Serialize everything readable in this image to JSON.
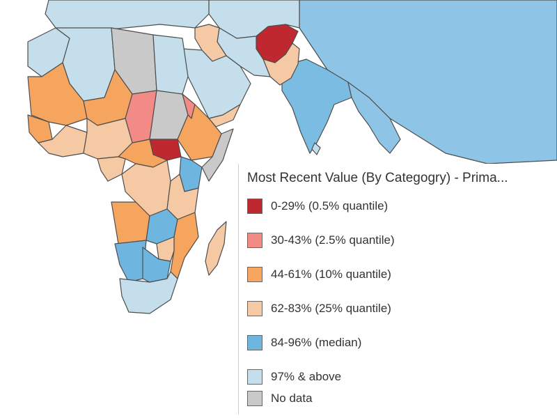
{
  "legend": {
    "title": "Most Recent Value (By Categogry) - Prima...",
    "items": [
      {
        "label": "0-29% (0.5% quantile)",
        "color": "#c0282f"
      },
      {
        "label": " 30-43% (2.5% quantile)",
        "color": "#f28b86"
      },
      {
        "label": "44-61% (10% quantile)",
        "color": "#f6a55f"
      },
      {
        "label": "62-83% (25% quantile)",
        "color": "#f5c9a4"
      },
      {
        "label": " 84-96% (median)",
        "color": "#6eb6e0"
      },
      {
        "label": "97% & above",
        "color": "#c4dfeb"
      },
      {
        "label": "No data",
        "color": "#c9c9c9"
      }
    ]
  }
}
